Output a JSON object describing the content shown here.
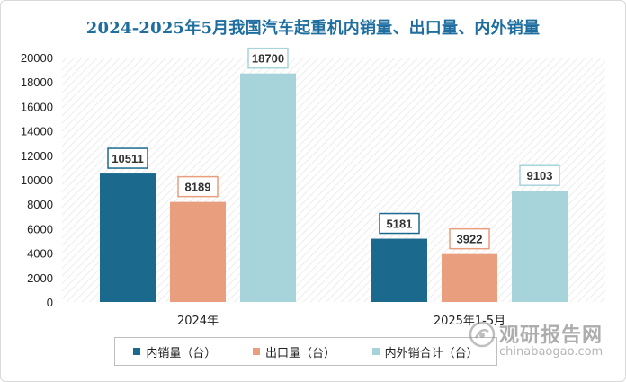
{
  "chart_data": {
    "type": "bar",
    "title": "2024-2025年5月我国汽车起重机内销量、出口量、内外销量",
    "categories": [
      "2024年",
      "2025年1-5月"
    ],
    "series": [
      {
        "name": "内销量（台）",
        "values": [
          10511,
          5181
        ],
        "color": "#1b6a8e"
      },
      {
        "name": "出口量（台）",
        "values": [
          8189,
          3922
        ],
        "color": "#e99e7d"
      },
      {
        "name": "内外销合计（台）",
        "values": [
          18700,
          9103
        ],
        "color": "#a7d3da"
      }
    ],
    "ylim": [
      0,
      20000
    ],
    "yticks": [
      0,
      2000,
      4000,
      6000,
      8000,
      10000,
      12000,
      14000,
      16000,
      18000,
      20000
    ],
    "xlabel": "",
    "ylabel": "",
    "grid": false,
    "legend": "bottom"
  },
  "watermark": {
    "cn": "观研报告网",
    "en": "chinabaogao.com",
    "logo_icon": "watermark-logo-icon"
  }
}
